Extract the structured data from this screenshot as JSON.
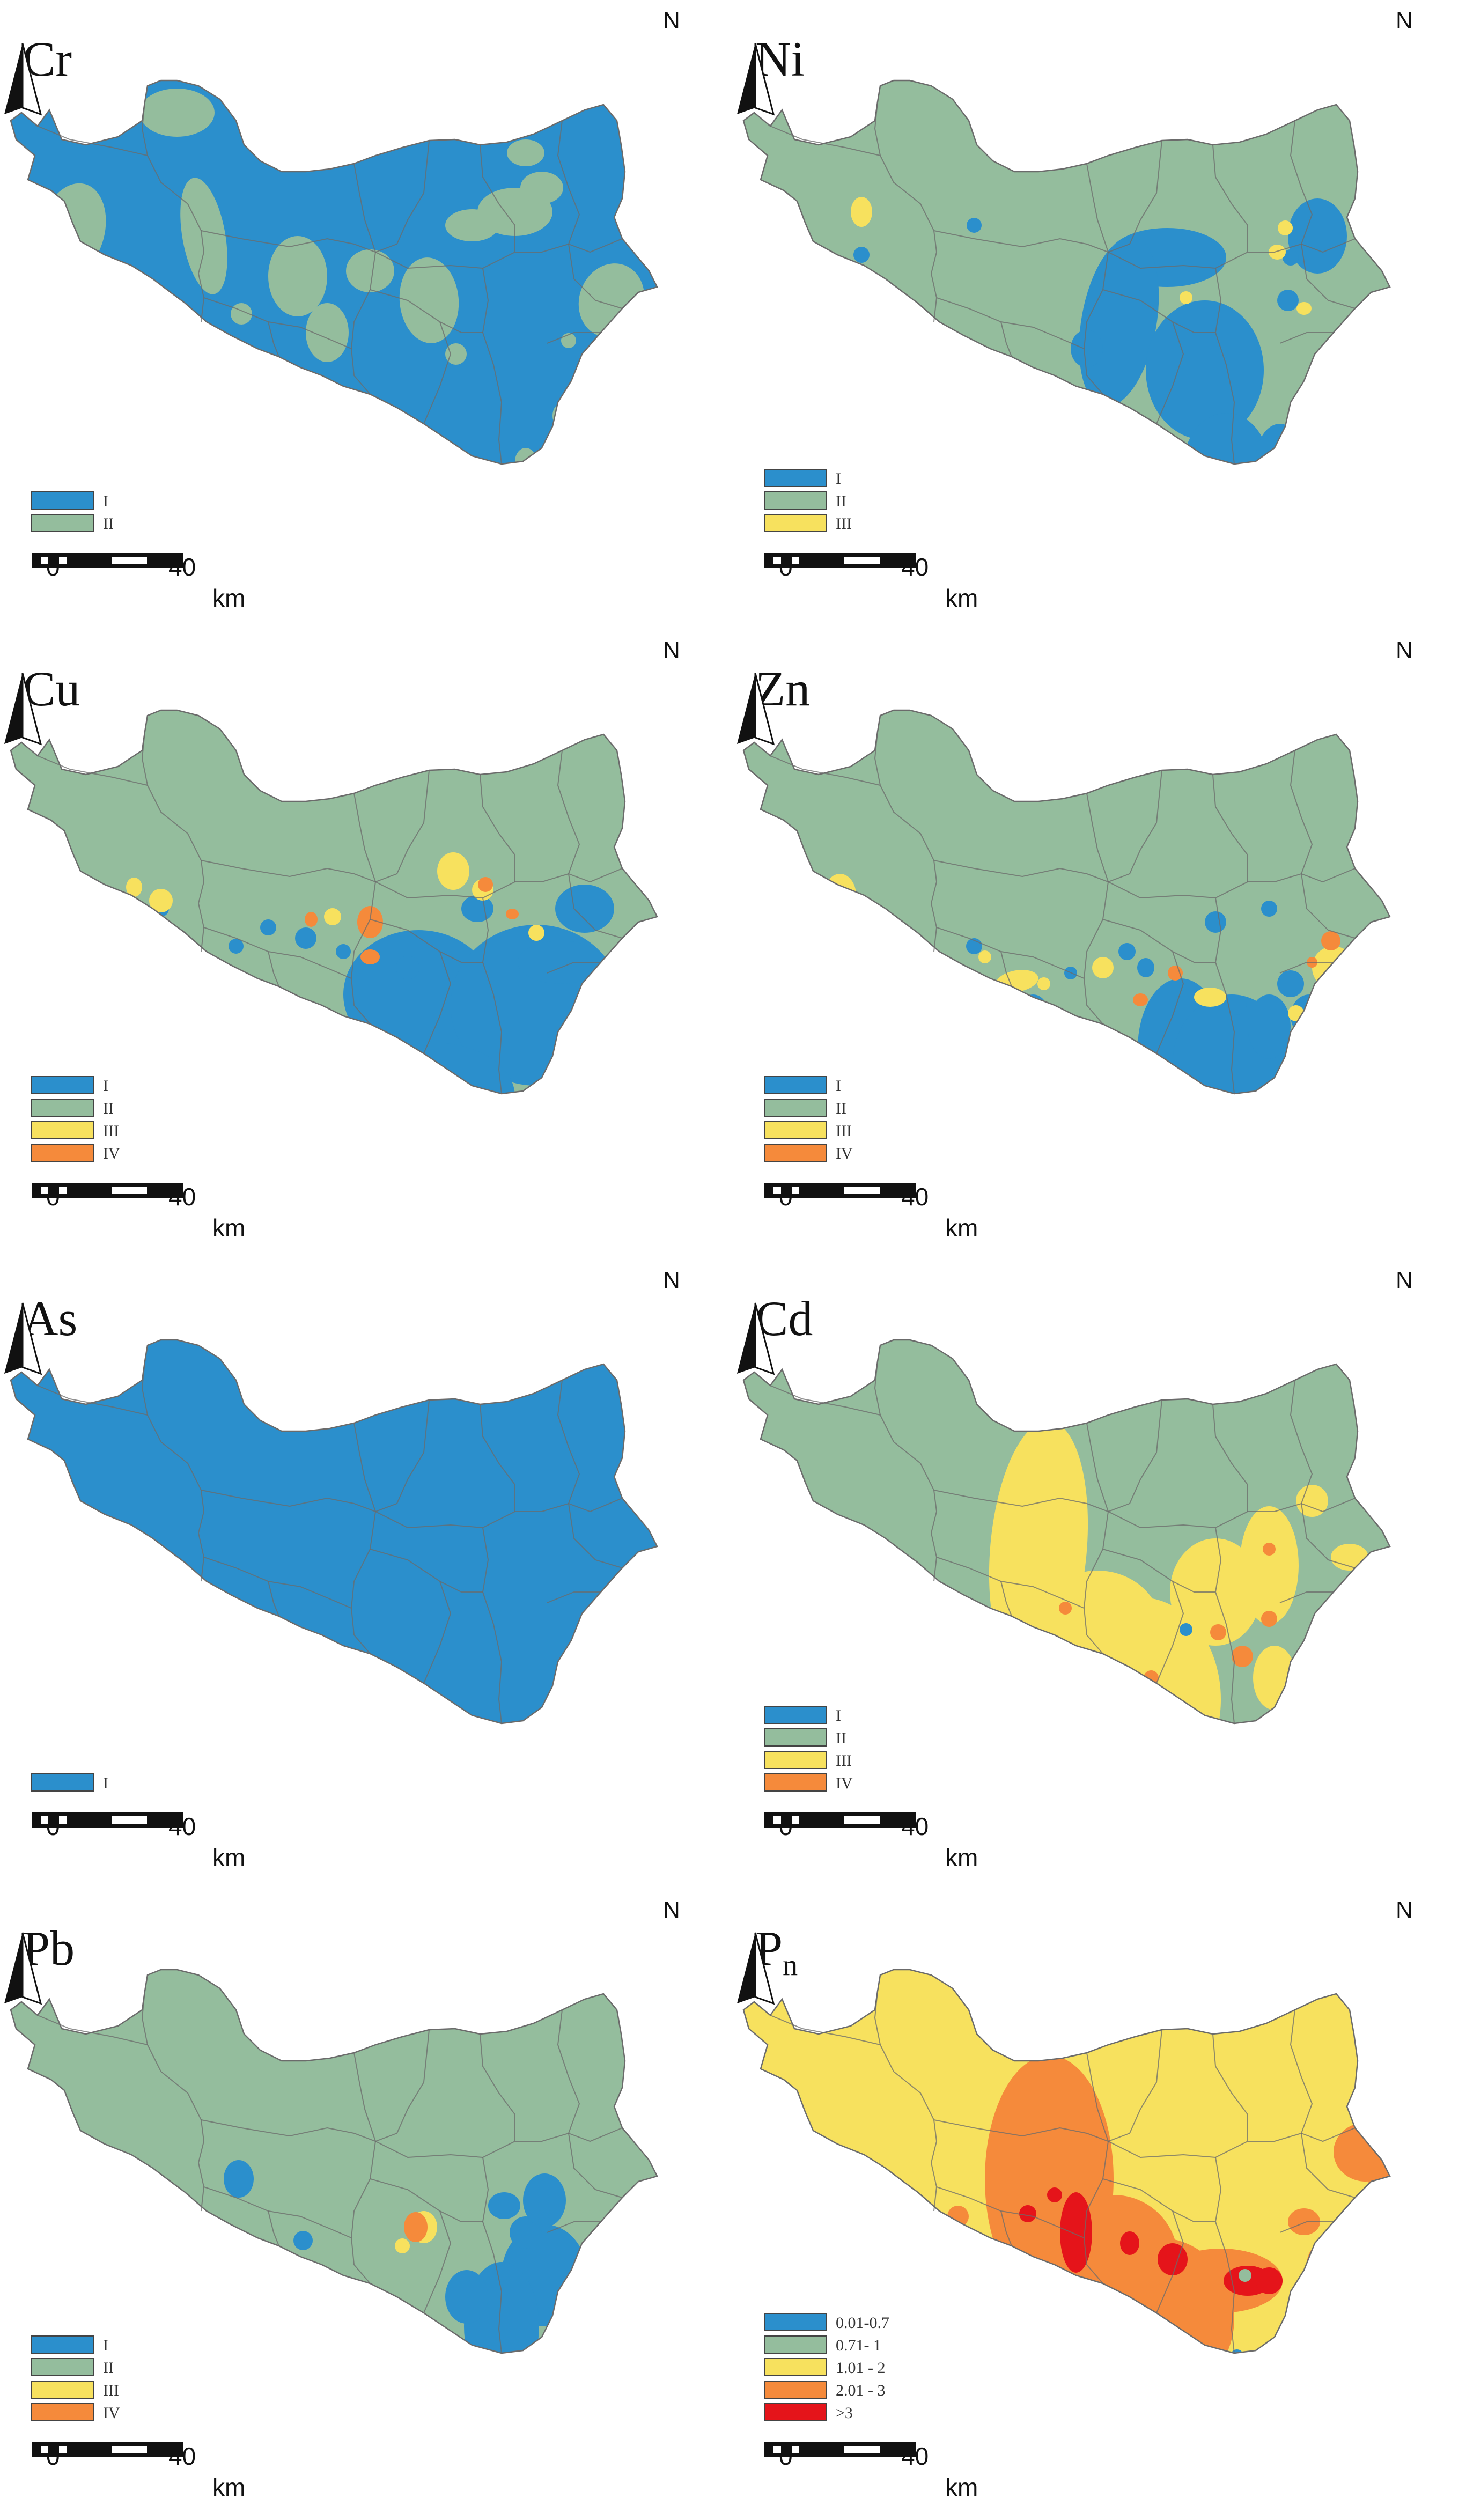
{
  "colors": {
    "class_I": "#2b8fcc",
    "class_II": "#94bd9d",
    "class_III": "#f7e15e",
    "class_IV": "#f58a3b",
    "class_V": "#e5141a",
    "boundary": "#6b6b6b"
  },
  "north_label": "N",
  "scale": {
    "start": "0",
    "mid": "40",
    "unit": "km"
  },
  "panels": [
    {
      "id": "cr",
      "title": "Cr",
      "base": "class_I",
      "legend": [
        {
          "label": "I",
          "color": "class_I"
        },
        {
          "label": "II",
          "color": "class_II"
        }
      ]
    },
    {
      "id": "ni",
      "title": "Ni",
      "base": "class_II",
      "legend": [
        {
          "label": "I",
          "color": "class_I"
        },
        {
          "label": "II",
          "color": "class_II"
        },
        {
          "label": "III",
          "color": "class_III"
        }
      ]
    },
    {
      "id": "cu",
      "title": "Cu",
      "base": "class_II",
      "legend": [
        {
          "label": "I",
          "color": "class_I"
        },
        {
          "label": "II",
          "color": "class_II"
        },
        {
          "label": "III",
          "color": "class_III"
        },
        {
          "label": "IV",
          "color": "class_IV"
        }
      ]
    },
    {
      "id": "zn",
      "title": "Zn",
      "base": "class_II",
      "legend": [
        {
          "label": "I",
          "color": "class_I"
        },
        {
          "label": "II",
          "color": "class_II"
        },
        {
          "label": "III",
          "color": "class_III"
        },
        {
          "label": "IV",
          "color": "class_IV"
        }
      ]
    },
    {
      "id": "as",
      "title": "As",
      "base": "class_I",
      "legend": [
        {
          "label": "I",
          "color": "class_I"
        }
      ]
    },
    {
      "id": "cd",
      "title": "Cd",
      "base": "class_II",
      "legend": [
        {
          "label": "I",
          "color": "class_I"
        },
        {
          "label": "II",
          "color": "class_II"
        },
        {
          "label": "III",
          "color": "class_III"
        },
        {
          "label": "IV",
          "color": "class_IV"
        }
      ]
    },
    {
      "id": "pb",
      "title": "Pb",
      "base": "class_II",
      "legend": [
        {
          "label": "I",
          "color": "class_I"
        },
        {
          "label": "II",
          "color": "class_II"
        },
        {
          "label": "III",
          "color": "class_III"
        },
        {
          "label": "IV",
          "color": "class_IV"
        }
      ]
    },
    {
      "id": "pn",
      "title": "P",
      "title_sub": "n",
      "base": "class_III",
      "legend": [
        {
          "label": "0.01-0.7",
          "color": "class_I"
        },
        {
          "label": "0.71- 1",
          "color": "class_II"
        },
        {
          "label": "1.01 - 2",
          "color": "class_III"
        },
        {
          "label": "2.01 - 3",
          "color": "class_IV"
        },
        {
          "label": ">3",
          "color": "class_V"
        }
      ]
    }
  ]
}
